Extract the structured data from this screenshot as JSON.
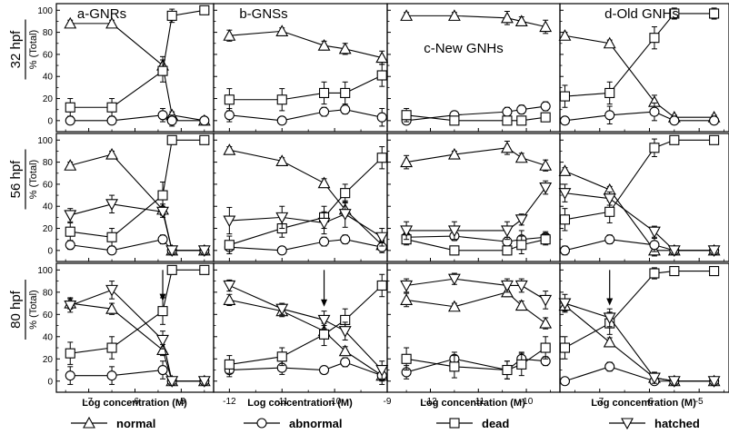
{
  "figure": {
    "columns": [
      {
        "title": "a-GNRs",
        "xlim": [
          -7.7,
          -4.3
        ],
        "xticks": [
          -7,
          -6,
          -5
        ],
        "xticklabels": [
          "-7",
          "-6",
          "-5"
        ]
      },
      {
        "title": "b-GNSs",
        "xlim": [
          -12.3,
          -9.0
        ],
        "xticks": [
          -12,
          -11,
          -10,
          -9
        ],
        "xticklabels": [
          "-12",
          "-11",
          "-10",
          "-9"
        ]
      },
      {
        "title": "c-New GNHs",
        "xlim": [
          -12.9,
          -9.3
        ],
        "xticks": [
          -12,
          -11,
          -10
        ],
        "xticklabels": [
          "-12",
          "-11",
          "-10"
        ]
      },
      {
        "title": "d-Old GNHs",
        "xlim": [
          -7.8,
          -4.4
        ],
        "xticks": [
          -8,
          -7,
          -6,
          -5
        ],
        "xticklabels": [
          "-8",
          "-7",
          "-6",
          "-5"
        ]
      }
    ],
    "rows": [
      {
        "label": "32 hpf",
        "ylabel": "% (Total)"
      },
      {
        "label": "56 hpf",
        "ylabel": "% (Total)"
      },
      {
        "label": "80 hpf",
        "ylabel": "% (Total)"
      }
    ],
    "yticks": [
      0,
      20,
      40,
      60,
      80,
      100
    ],
    "ylim": [
      -10,
      106
    ],
    "xlabel": "Log concentration (M)",
    "legend": [
      {
        "key": "normal",
        "label": "normal",
        "marker": "triangle-up"
      },
      {
        "key": "abnormal",
        "label": "abnormal",
        "marker": "circle"
      },
      {
        "key": "dead",
        "label": "dead",
        "marker": "square"
      },
      {
        "key": "hatched",
        "label": "hatched",
        "marker": "triangle-down"
      }
    ]
  },
  "chart_data": [
    {
      "type": "line",
      "title": "a-GNRs",
      "row": "32 hpf",
      "col": 0,
      "x": [
        -7.4,
        -6.5,
        -5.4,
        -5.2,
        -4.5
      ],
      "ylim": [
        0,
        100
      ],
      "series": [
        {
          "name": "normal",
          "values": [
            88,
            88,
            50,
            5,
            0
          ],
          "err": [
            3,
            3,
            8,
            3,
            2
          ]
        },
        {
          "name": "abnormal",
          "values": [
            0,
            0,
            5,
            0,
            0
          ],
          "err": [
            2,
            3,
            6,
            5,
            2
          ]
        },
        {
          "name": "dead",
          "values": [
            12,
            12,
            45,
            95,
            100
          ],
          "err": [
            8,
            8,
            10,
            6,
            2
          ]
        }
      ]
    },
    {
      "type": "line",
      "title": "b-GNSs",
      "row": "32 hpf",
      "col": 1,
      "x": [
        -12,
        -11,
        -10.2,
        -9.8,
        -9.1
      ],
      "ylim": [
        0,
        100
      ],
      "series": [
        {
          "name": "normal",
          "values": [
            77,
            81,
            68,
            65,
            57
          ],
          "err": [
            5,
            3,
            4,
            5,
            6
          ]
        },
        {
          "name": "abnormal",
          "values": [
            5,
            0,
            8,
            10,
            3
          ],
          "err": [
            6,
            3,
            4,
            4,
            8
          ]
        },
        {
          "name": "dead",
          "values": [
            19,
            19,
            25,
            25,
            41
          ],
          "err": [
            10,
            10,
            10,
            10,
            10
          ]
        }
      ]
    },
    {
      "type": "line",
      "title": "c-New GNHs",
      "row": "32 hpf",
      "col": 2,
      "x": [
        -12.5,
        -11.5,
        -10.4,
        -10.1,
        -9.6
      ],
      "ylim": [
        0,
        100
      ],
      "series": [
        {
          "name": "normal",
          "values": [
            95,
            95,
            93,
            90,
            85
          ],
          "err": [
            3,
            3,
            6,
            4,
            6
          ]
        },
        {
          "name": "abnormal",
          "values": [
            0,
            5,
            8,
            10,
            13
          ],
          "err": [
            3,
            2,
            4,
            4,
            4
          ]
        },
        {
          "name": "dead",
          "values": [
            5,
            0,
            0,
            0,
            3
          ],
          "err": [
            6,
            2,
            2,
            2,
            3
          ]
        }
      ]
    },
    {
      "type": "line",
      "title": "d-Old GNHs",
      "row": "32 hpf",
      "col": 3,
      "x": [
        -7.7,
        -6.8,
        -5.9,
        -5.5,
        -4.7
      ],
      "ylim": [
        0,
        100
      ],
      "series": [
        {
          "name": "normal",
          "values": [
            77,
            70,
            17,
            3,
            3
          ],
          "err": [
            3,
            3,
            6,
            2,
            2
          ]
        },
        {
          "name": "abnormal",
          "values": [
            0,
            5,
            8,
            0,
            0
          ],
          "err": [
            2,
            8,
            8,
            2,
            2
          ]
        },
        {
          "name": "dead",
          "values": [
            22,
            25,
            75,
            97,
            97
          ],
          "err": [
            10,
            10,
            10,
            5,
            5
          ]
        }
      ]
    },
    {
      "type": "line",
      "title": "a-GNRs",
      "row": "56 hpf",
      "col": 0,
      "x": [
        -7.4,
        -6.5,
        -5.4,
        -5.2,
        -4.5
      ],
      "ylim": [
        0,
        100
      ],
      "series": [
        {
          "name": "normal",
          "values": [
            77,
            87,
            37,
            0,
            0
          ],
          "err": [
            3,
            3,
            5,
            2,
            2
          ]
        },
        {
          "name": "abnormal",
          "values": [
            5,
            0,
            10,
            0,
            0
          ],
          "err": [
            4,
            3,
            4,
            2,
            2
          ]
        },
        {
          "name": "dead",
          "values": [
            17,
            12,
            50,
            100,
            100
          ],
          "err": [
            8,
            8,
            12,
            2,
            2
          ]
        },
        {
          "name": "hatched",
          "values": [
            32,
            42,
            35,
            0,
            0
          ],
          "err": [
            6,
            8,
            5,
            2,
            2
          ]
        }
      ]
    },
    {
      "type": "line",
      "title": "b-GNSs",
      "row": "56 hpf",
      "col": 1,
      "x": [
        -12,
        -11,
        -10.2,
        -9.8,
        -9.1
      ],
      "ylim": [
        0,
        100
      ],
      "series": [
        {
          "name": "normal",
          "values": [
            91,
            81,
            61,
            37,
            5
          ],
          "err": [
            3,
            3,
            4,
            6,
            4
          ]
        },
        {
          "name": "abnormal",
          "values": [
            3,
            0,
            8,
            10,
            3
          ],
          "err": [
            2,
            2,
            4,
            4,
            5
          ]
        },
        {
          "name": "dead",
          "values": [
            5,
            20,
            30,
            52,
            84
          ],
          "err": [
            8,
            8,
            10,
            8,
            10
          ]
        },
        {
          "name": "hatched",
          "values": [
            27,
            30,
            25,
            33,
            12
          ],
          "err": [
            12,
            10,
            10,
            12,
            8
          ]
        }
      ]
    },
    {
      "type": "line",
      "title": "c-New GNHs",
      "row": "56 hpf",
      "col": 2,
      "x": [
        -12.5,
        -11.5,
        -10.4,
        -10.1,
        -9.6
      ],
      "ylim": [
        0,
        100
      ],
      "series": [
        {
          "name": "normal",
          "values": [
            80,
            87,
            93,
            84,
            77
          ],
          "err": [
            6,
            3,
            6,
            4,
            5
          ]
        },
        {
          "name": "abnormal",
          "values": [
            12,
            13,
            8,
            10,
            12
          ],
          "err": [
            4,
            4,
            4,
            8,
            5
          ]
        },
        {
          "name": "dead",
          "values": [
            10,
            0,
            0,
            5,
            10
          ],
          "err": [
            5,
            4,
            4,
            8,
            5
          ]
        },
        {
          "name": "hatched",
          "values": [
            18,
            18,
            18,
            28,
            57
          ],
          "err": [
            8,
            8,
            8,
            5,
            6
          ]
        }
      ]
    },
    {
      "type": "line",
      "title": "d-Old GNHs",
      "row": "56 hpf",
      "col": 3,
      "x": [
        -7.7,
        -6.8,
        -5.9,
        -5.5,
        -4.7
      ],
      "ylim": [
        0,
        100
      ],
      "series": [
        {
          "name": "normal",
          "values": [
            72,
            55,
            0,
            0,
            0
          ],
          "err": [
            3,
            3,
            5,
            2,
            2
          ]
        },
        {
          "name": "abnormal",
          "values": [
            0,
            10,
            5,
            0,
            0
          ],
          "err": [
            4,
            4,
            6,
            2,
            2
          ]
        },
        {
          "name": "dead",
          "values": [
            28,
            35,
            93,
            100,
            100
          ],
          "err": [
            10,
            10,
            8,
            2,
            2
          ]
        },
        {
          "name": "hatched",
          "values": [
            52,
            47,
            17,
            0,
            0
          ],
          "err": [
            8,
            6,
            5,
            2,
            2
          ]
        }
      ]
    },
    {
      "type": "line",
      "title": "a-GNRs",
      "row": "80 hpf",
      "col": 0,
      "x": [
        -7.4,
        -6.5,
        -5.4,
        -5.2,
        -4.5
      ],
      "ylim": [
        0,
        100
      ],
      "series": [
        {
          "name": "normal",
          "values": [
            70,
            65,
            28,
            0,
            0
          ],
          "err": [
            5,
            5,
            5,
            2,
            2
          ]
        },
        {
          "name": "abnormal",
          "values": [
            5,
            5,
            10,
            0,
            0
          ],
          "err": [
            8,
            8,
            8,
            2,
            2
          ]
        },
        {
          "name": "dead",
          "values": [
            25,
            30,
            63,
            100,
            100
          ],
          "err": [
            10,
            10,
            12,
            2,
            2
          ]
        },
        {
          "name": "hatched",
          "values": [
            68,
            82,
            37,
            0,
            0
          ],
          "err": [
            6,
            8,
            8,
            2,
            2
          ]
        }
      ]
    },
    {
      "type": "line",
      "title": "b-GNSs",
      "row": "80 hpf",
      "col": 1,
      "x": [
        -12,
        -11,
        -10.2,
        -9.8,
        -9.1
      ],
      "ylim": [
        0,
        100
      ],
      "series": [
        {
          "name": "normal",
          "values": [
            73,
            63,
            45,
            27,
            5
          ],
          "err": [
            5,
            5,
            5,
            4,
            5
          ]
        },
        {
          "name": "abnormal",
          "values": [
            10,
            12,
            10,
            17,
            5
          ],
          "err": [
            6,
            6,
            3,
            4,
            8
          ]
        },
        {
          "name": "dead",
          "values": [
            15,
            22,
            42,
            55,
            86
          ],
          "err": [
            8,
            8,
            10,
            10,
            10
          ]
        },
        {
          "name": "hatched",
          "values": [
            86,
            65,
            55,
            45,
            10
          ],
          "err": [
            5,
            5,
            8,
            8,
            8
          ]
        }
      ]
    },
    {
      "type": "line",
      "title": "c-New GNHs",
      "row": "80 hpf",
      "col": 2,
      "x": [
        -12.5,
        -11.5,
        -10.4,
        -10.1,
        -9.6
      ],
      "ylim": [
        0,
        100
      ],
      "series": [
        {
          "name": "normal",
          "values": [
            73,
            67,
            80,
            68,
            52
          ],
          "err": [
            6,
            3,
            4,
            4,
            5
          ]
        },
        {
          "name": "abnormal",
          "values": [
            8,
            20,
            10,
            20,
            18
          ],
          "err": [
            6,
            6,
            8,
            6,
            4
          ]
        },
        {
          "name": "dead",
          "values": [
            20,
            13,
            10,
            15,
            30
          ],
          "err": [
            10,
            10,
            8,
            10,
            10
          ]
        },
        {
          "name": "hatched",
          "values": [
            86,
            92,
            86,
            86,
            73
          ],
          "err": [
            6,
            5,
            6,
            6,
            8
          ]
        }
      ]
    },
    {
      "type": "line",
      "title": "d-Old GNHs",
      "row": "80 hpf",
      "col": 3,
      "x": [
        -7.7,
        -6.8,
        -5.9,
        -5.5,
        -4.7
      ],
      "ylim": [
        0,
        100
      ],
      "series": [
        {
          "name": "normal",
          "values": [
            68,
            35,
            3,
            0,
            0
          ],
          "err": [
            5,
            4,
            4,
            2,
            2
          ]
        },
        {
          "name": "abnormal",
          "values": [
            0,
            13,
            0,
            0,
            0
          ],
          "err": [
            2,
            4,
            2,
            2,
            2
          ]
        },
        {
          "name": "dead",
          "values": [
            30,
            52,
            97,
            99,
            99
          ],
          "err": [
            10,
            10,
            5,
            2,
            2
          ]
        },
        {
          "name": "hatched",
          "values": [
            70,
            57,
            3,
            0,
            0
          ],
          "err": [
            8,
            8,
            5,
            2,
            2
          ]
        }
      ]
    }
  ],
  "annotations": [
    {
      "type": "arrow",
      "row": 2,
      "col": 0,
      "x": -5.4,
      "y_from": 100,
      "y_to": 72
    },
    {
      "type": "arrow",
      "row": 2,
      "col": 1,
      "x": -10.2,
      "y_from": 100,
      "y_to": 67
    },
    {
      "type": "arrow",
      "row": 2,
      "col": 3,
      "x": -6.8,
      "y_from": 100,
      "y_to": 68
    }
  ]
}
